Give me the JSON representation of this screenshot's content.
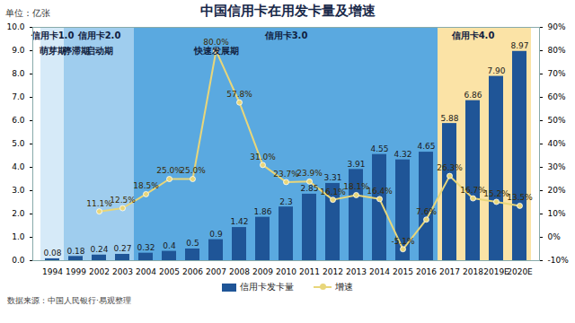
{
  "chart_data": {
    "type": "bar",
    "title": "中国信用卡在用发卡量及增速",
    "ylabel": "单位：亿张",
    "source": "数据来源：中国人民银行·易观整理",
    "categories": [
      "1994",
      "1999",
      "2002",
      "2003",
      "2004",
      "2005",
      "2006",
      "2007",
      "2008",
      "2009",
      "2010",
      "2011",
      "2012",
      "2013",
      "2014",
      "2015",
      "2016",
      "2017",
      "2018",
      "2019E",
      "2020E"
    ],
    "series": [
      {
        "name": "信用卡发卡量",
        "type": "bar",
        "color": "#1f5597",
        "values": [
          0.08,
          0.18,
          0.24,
          0.27,
          0.32,
          0.4,
          0.5,
          0.9,
          1.42,
          1.86,
          2.3,
          2.85,
          3.31,
          3.91,
          4.55,
          4.32,
          4.65,
          5.88,
          6.86,
          7.9,
          8.97
        ],
        "value_labels": [
          "0.08",
          "0.18",
          "0.24",
          "0.27",
          "0.32",
          "0.4",
          "0.5",
          "0.9",
          "1.42",
          "1.86",
          "2.3",
          "2.85",
          "3.31",
          "3.91",
          "4.55",
          "4.32",
          "4.65",
          "5.88",
          "6.86",
          "7.90",
          "8.97"
        ]
      },
      {
        "name": "增速",
        "type": "line",
        "axis": "y2",
        "color": "#e8d67a",
        "marker": "circle",
        "values": [
          null,
          null,
          11.1,
          12.5,
          18.5,
          25.0,
          25.0,
          80.0,
          57.8,
          31.0,
          23.7,
          23.9,
          16.1,
          18.1,
          16.4,
          -5.1,
          7.6,
          26.3,
          16.7,
          15.2,
          13.5
        ],
        "value_labels": [
          null,
          null,
          "11.1%",
          "12.5%",
          "18.5%",
          "25.0%",
          "25.0%",
          "80.0%",
          "57.8%",
          "31.0%",
          "23.7%",
          "23.9%",
          "16.1%",
          "18.1%",
          "16.4%",
          "-5.1%",
          "7.6%",
          "26.3%",
          "16.7%",
          "15.2%",
          "13.5%"
        ]
      }
    ],
    "ylim": [
      0,
      10
    ],
    "yticks": [
      {
        "value": 0,
        "label": "0.0"
      },
      {
        "value": 1,
        "label": "1.0"
      },
      {
        "value": 2,
        "label": "2.0"
      },
      {
        "value": 3,
        "label": "3.0"
      },
      {
        "value": 4,
        "label": "4.0"
      },
      {
        "value": 5,
        "label": "5.0"
      },
      {
        "value": 6,
        "label": "6.0"
      },
      {
        "value": 7,
        "label": "7.0"
      },
      {
        "value": 8,
        "label": "8.0"
      },
      {
        "value": 9,
        "label": "9.0"
      },
      {
        "value": 10,
        "label": "10.0"
      }
    ],
    "y2lim": [
      -10,
      90
    ],
    "y2ticks": [
      {
        "value": -10,
        "label": "-10%"
      },
      {
        "value": 0,
        "label": "0%"
      },
      {
        "value": 10,
        "label": "10%"
      },
      {
        "value": 20,
        "label": "20%"
      },
      {
        "value": 30,
        "label": "30%"
      },
      {
        "value": 40,
        "label": "40%"
      },
      {
        "value": 50,
        "label": "50%"
      },
      {
        "value": 60,
        "label": "60%"
      },
      {
        "value": 70,
        "label": "70%"
      },
      {
        "value": 80,
        "label": "80%"
      },
      {
        "value": 90,
        "label": "90%"
      }
    ],
    "eras": [
      {
        "label": "信用卡1.0",
        "from": "1994",
        "to": "1994",
        "color": "#d6eaf8"
      },
      {
        "label": "信用卡2.0",
        "from": "1999",
        "to": "2003",
        "color": "#9fcdee"
      },
      {
        "label": "信用卡3.0",
        "from": "2004",
        "to": "2016",
        "color": "#5aa9e0"
      },
      {
        "label": "信用卡4.0",
        "from": "2017",
        "to": "2020E",
        "color": "#fbe3a6"
      }
    ],
    "stages": [
      {
        "label": "萌芽期",
        "from": "1994",
        "to": "1994"
      },
      {
        "label": "停滞期",
        "from": "1999",
        "to": "1999"
      },
      {
        "label": "启动期",
        "from": "2002",
        "to": "2003"
      },
      {
        "label": "快速发展期",
        "from": "2006",
        "to": "2008"
      }
    ],
    "data_labels": true,
    "legend": "bottom",
    "grid": false
  }
}
